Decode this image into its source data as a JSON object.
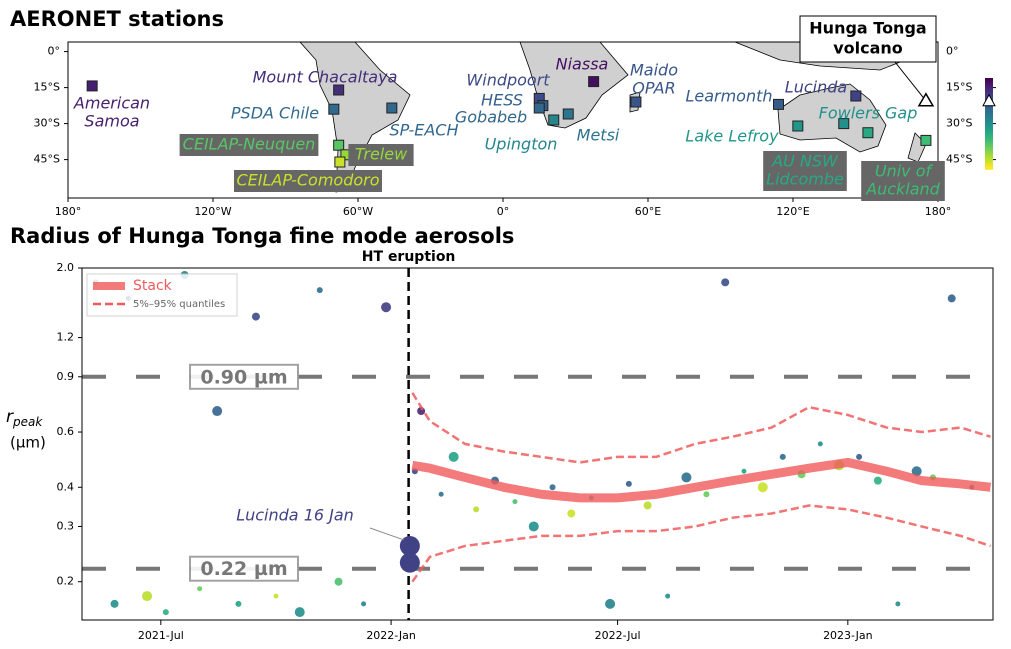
{
  "chart_data": [
    {
      "type": "map",
      "title": "AERONET stations",
      "xlim": [
        -180,
        180
      ],
      "ylim": [
        -61,
        4
      ],
      "xticks": [
        {
          "value": -180,
          "label": "180°"
        },
        {
          "value": -120,
          "label": "120°W"
        },
        {
          "value": -60,
          "label": "60°W"
        },
        {
          "value": 0,
          "label": "0°"
        },
        {
          "value": 60,
          "label": "60°E"
        },
        {
          "value": 120,
          "label": "120°E"
        },
        {
          "value": 180,
          "label": "180°"
        }
      ],
      "yticks": [
        {
          "value": 0,
          "label": "0°"
        },
        {
          "value": -15,
          "label": "15°S"
        },
        {
          "value": -30,
          "label": "30°S"
        },
        {
          "value": -45,
          "label": "45°S"
        }
      ],
      "colormap": "viridis",
      "clim": [
        -11,
        -49
      ],
      "stations": [
        {
          "label": [
            "American",
            "Samoa"
          ],
          "lon": -170,
          "lat": -14.3
        },
        {
          "label": [
            "Mount Chacaltaya"
          ],
          "lon": -68,
          "lat": -16
        },
        {
          "label": [
            "PSDA Chile"
          ],
          "lon": -70,
          "lat": -24
        },
        {
          "label": [
            "SP-EACH"
          ],
          "lon": -46,
          "lat": -23.5
        },
        {
          "label": [
            "CEILAP-Neuquen"
          ],
          "lon": -68,
          "lat": -39
        },
        {
          "label": [
            "Trelew"
          ],
          "lon": -65,
          "lat": -43
        },
        {
          "label": [
            "CEILAP-Comodoro"
          ],
          "lon": -67.5,
          "lat": -46
        },
        {
          "label": [
            "Windpoort"
          ],
          "lon": 15,
          "lat": -19.5
        },
        {
          "label": [
            "HESS"
          ],
          "lon": 16.5,
          "lat": -22.5
        },
        {
          "label": [
            "Gobabeb"
          ],
          "lon": 15,
          "lat": -23.5
        },
        {
          "label": [
            "Upington"
          ],
          "lon": 21,
          "lat": -28.5
        },
        {
          "label": [
            "Metsi"
          ],
          "lon": 27,
          "lat": -26
        },
        {
          "label": [
            "Niassa"
          ],
          "lon": 37.5,
          "lat": -12.5
        },
        {
          "label": [
            "Maido",
            "OPAR"
          ],
          "lon": 55,
          "lat": -21
        },
        {
          "label": [
            "Learmonth"
          ],
          "lon": 114,
          "lat": -22
        },
        {
          "label": [
            "Lucinda"
          ],
          "lon": 146,
          "lat": -18.5
        },
        {
          "label": [
            "Lake Lefroy"
          ],
          "lon": 122,
          "lat": -31
        },
        {
          "label": [
            "Fowlers Gap"
          ],
          "lon": 141,
          "lat": -30
        },
        {
          "label": [
            "AU NSW",
            "Lidcombe"
          ],
          "lon": 151,
          "lat": -33.8
        },
        {
          "label": [
            "Univ of",
            "Auckland"
          ],
          "lon": 175,
          "lat": -37
        }
      ],
      "volcano": {
        "label": [
          "Hunga Tonga",
          "volcano"
        ],
        "lon": 175,
        "lat": -20.5
      }
    },
    {
      "type": "scatter",
      "title": "Radius of Hunga Tonga fine mode aerosols",
      "ylabel": [
        "r",
        "peak",
        "(µm)"
      ],
      "xlim": [
        "2021-04-29",
        "2023-04-27"
      ],
      "xticks": [
        {
          "value": "2021-07-01",
          "label": "2021-Jul"
        },
        {
          "value": "2022-01-01",
          "label": "2022-Jan"
        },
        {
          "value": "2022-07-01",
          "label": "2022-Jul"
        },
        {
          "value": "2023-01-01",
          "label": "2023-Jan"
        }
      ],
      "ylim": [
        0.151,
        2
      ],
      "yscale": "log",
      "yticks": [
        0.2,
        0.3,
        0.4,
        0.6,
        0.9,
        1.2,
        {
          "value": 2,
          "label": "2.0"
        }
      ],
      "points": {
        "x": [
          "2021-05-10",
          "2021-05-25",
          "2021-06-05",
          "2021-06-20",
          "2021-07-05",
          "2021-07-20",
          "2021-08-01",
          "2021-08-15",
          "2021-09-01",
          "2021-09-15",
          "2021-10-01",
          "2021-10-20",
          "2021-11-05",
          "2021-11-20",
          "2021-12-10",
          "2021-12-28",
          "2022-01-20",
          "2022-01-25",
          "2022-02-10",
          "2022-02-20",
          "2022-03-10",
          "2022-03-25",
          "2022-04-10",
          "2022-04-25",
          "2022-05-10",
          "2022-05-25",
          "2022-06-10",
          "2022-06-25",
          "2022-07-10",
          "2022-07-25",
          "2022-08-10",
          "2022-08-25",
          "2022-09-10",
          "2022-09-25",
          "2022-10-10",
          "2022-10-25",
          "2022-11-10",
          "2022-11-25",
          "2022-12-10",
          "2022-12-25",
          "2023-01-10",
          "2023-01-25",
          "2023-02-10",
          "2023-02-25",
          "2023-03-10",
          "2023-03-25",
          "2023-04-10"
        ],
        "y": [
          1.8,
          0.17,
          1.6,
          0.18,
          0.16,
          1.9,
          0.19,
          0.7,
          0.17,
          1.4,
          0.18,
          0.16,
          1.7,
          0.2,
          0.17,
          1.5,
          0.45,
          0.7,
          0.38,
          0.5,
          0.34,
          0.42,
          0.36,
          0.3,
          0.4,
          0.33,
          0.37,
          0.17,
          0.41,
          0.35,
          0.18,
          0.43,
          0.38,
          1.8,
          0.45,
          0.4,
          0.5,
          0.44,
          0.55,
          0.47,
          0.5,
          0.42,
          0.17,
          0.45,
          0.43,
          1.6,
          0.4
        ],
        "lat": [
          -23,
          -30,
          -15,
          -45,
          -35,
          -28,
          -40,
          -23,
          -33,
          -20,
          -46,
          -30,
          -25,
          -38,
          -28,
          -18,
          -19,
          -15,
          -25,
          -33,
          -45,
          -23,
          -38,
          -30,
          -24,
          -46,
          -35,
          -28,
          -22,
          -45,
          -30,
          -25,
          -40,
          -20,
          -33,
          -46,
          -24,
          -40,
          -30,
          -44,
          -22,
          -35,
          -30,
          -25,
          -40,
          -23,
          -30
        ]
      },
      "series": [
        {
          "name": "Stack",
          "color": "#f05a5a",
          "x": [
            "2022-01-18",
            "2022-02-01",
            "2022-03-01",
            "2022-04-01",
            "2022-05-01",
            "2022-06-01",
            "2022-07-01",
            "2022-08-01",
            "2022-09-01",
            "2022-10-01",
            "2022-11-01",
            "2022-12-01",
            "2023-01-01",
            "2023-02-01",
            "2023-03-01",
            "2023-04-01",
            "2023-04-25"
          ],
          "values": [
            0.47,
            0.46,
            0.43,
            0.4,
            0.38,
            0.37,
            0.37,
            0.38,
            0.4,
            0.42,
            0.44,
            0.46,
            0.48,
            0.45,
            0.42,
            0.41,
            0.4
          ]
        },
        {
          "name": "5%–95% quantiles",
          "color": "#f05a5a",
          "x": [
            "2022-01-18",
            "2022-02-01",
            "2022-03-01",
            "2022-04-01",
            "2022-05-01",
            "2022-06-01",
            "2022-07-01",
            "2022-08-01",
            "2022-09-01",
            "2022-10-01",
            "2022-11-01",
            "2022-12-01",
            "2023-01-01",
            "2023-02-01",
            "2023-03-01",
            "2023-04-01",
            "2023-04-25"
          ],
          "upper": [
            0.8,
            0.65,
            0.55,
            0.52,
            0.5,
            0.48,
            0.5,
            0.5,
            0.55,
            0.58,
            0.62,
            0.72,
            0.68,
            0.62,
            0.6,
            0.62,
            0.58
          ],
          "lower": [
            0.2,
            0.24,
            0.26,
            0.27,
            0.28,
            0.28,
            0.29,
            0.29,
            0.3,
            0.32,
            0.33,
            0.35,
            0.34,
            0.32,
            0.3,
            0.28,
            0.26
          ]
        }
      ],
      "hlines": [
        {
          "value": 0.9,
          "label": "0.90 µm"
        },
        {
          "value": 0.22,
          "label": "0.22 µm"
        }
      ],
      "vline": {
        "value": "2022-01-15",
        "label": "HT eruption"
      },
      "annotation": {
        "text": "Lucinda 16 Jan",
        "x": [
          "2022-01-16",
          "2022-01-16"
        ],
        "y": [
          0.26,
          0.23
        ],
        "lat": -18.5
      }
    }
  ]
}
